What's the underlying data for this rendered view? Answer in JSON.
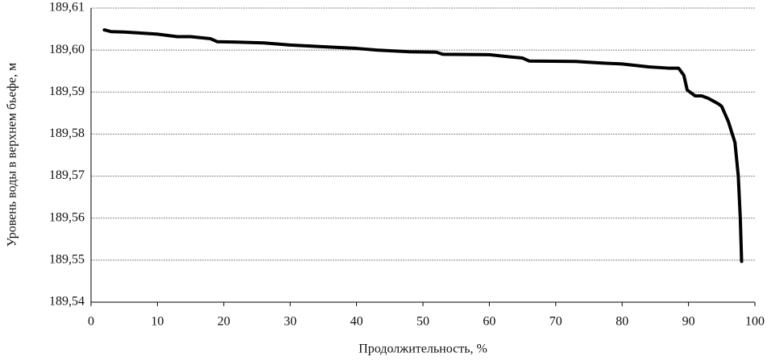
{
  "chart_data": {
    "type": "line",
    "xlabel": "Продолжительность, %",
    "ylabel": "Уровень воды в верхнем бьефе, м",
    "x": [
      2,
      3,
      5,
      7,
      10,
      13,
      15,
      18,
      19,
      22,
      26,
      30,
      35,
      40,
      43,
      48,
      52,
      53,
      60,
      63,
      65,
      66,
      73,
      77,
      80,
      84,
      87,
      88.5,
      89.3,
      89.8,
      91,
      92,
      93,
      94.5,
      95,
      96,
      97,
      97.5,
      97.8,
      98
    ],
    "values": [
      189.6048,
      189.6044,
      189.6043,
      189.6041,
      189.6038,
      189.6032,
      189.6032,
      189.6027,
      189.602,
      189.6019,
      189.6017,
      189.6012,
      189.6008,
      189.6004,
      189.6,
      189.5996,
      189.5995,
      189.599,
      189.5989,
      189.5984,
      189.5981,
      189.5974,
      189.5973,
      189.5969,
      189.5967,
      189.596,
      189.5957,
      189.5957,
      189.594,
      189.5905,
      189.5891,
      189.5891,
      189.5885,
      189.5872,
      189.5866,
      189.583,
      189.578,
      189.57,
      189.56,
      189.5497
    ],
    "color": "#000000",
    "xlim": [
      0,
      100
    ],
    "xticks": [
      0,
      10,
      20,
      30,
      40,
      50,
      60,
      70,
      80,
      90,
      100
    ],
    "ylim": [
      189.54,
      189.61
    ],
    "yticks": [
      {
        "value": 189.54,
        "label": "189,54"
      },
      {
        "value": 189.55,
        "label": "189,55"
      },
      {
        "value": 189.56,
        "label": "189,56"
      },
      {
        "value": 189.57,
        "label": "189,57"
      },
      {
        "value": 189.58,
        "label": "189,58"
      },
      {
        "value": 189.59,
        "label": "189,59"
      },
      {
        "value": 189.6,
        "label": "189,60"
      },
      {
        "value": 189.61,
        "label": "189,61"
      }
    ],
    "grid": true
  }
}
